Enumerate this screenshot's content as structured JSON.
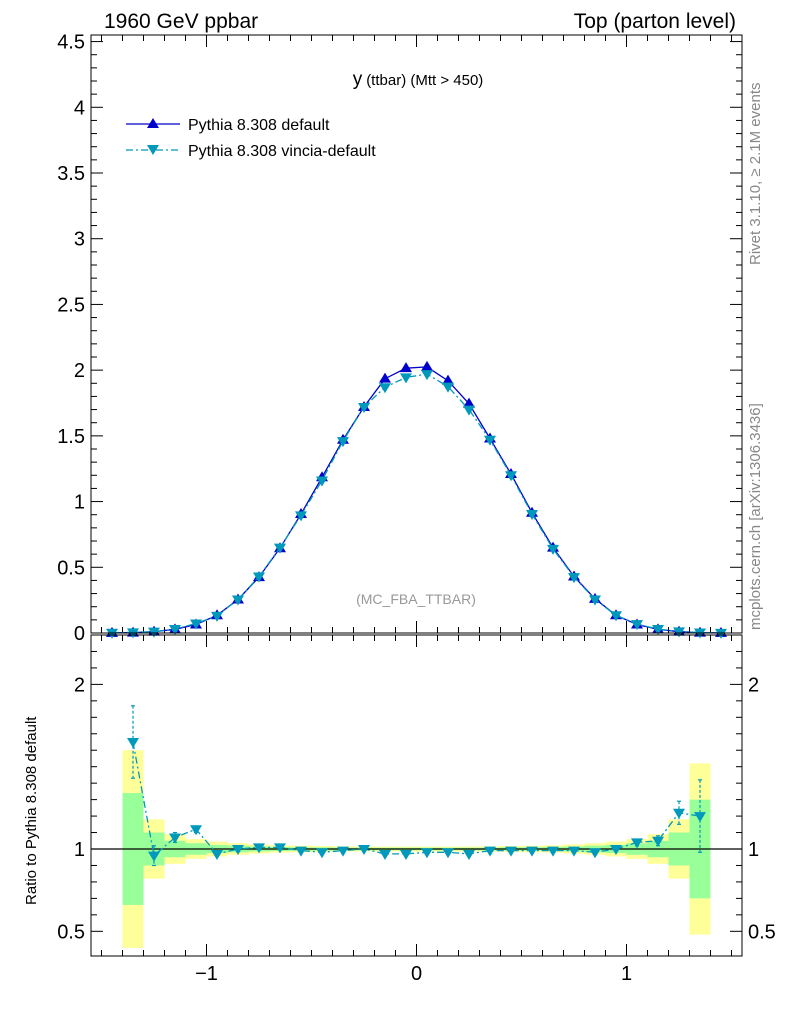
{
  "header": {
    "left": "1960 GeV ppbar",
    "right": "Top (parton level)"
  },
  "side": {
    "rivet": "Rivet 3.1.10, ≥ 2.1M events",
    "site": "mcplots.cern.ch [arXiv:1306.3436]"
  },
  "chart_data": [
    {
      "type": "line",
      "title": "y (ttbar) (Mtt > 450)",
      "title_main": "y",
      "title_sub": "(ttbar) (Mtt > 450)",
      "watermark": "(MC_FBA_TTBAR)",
      "xlim": [
        -1.55,
        1.55
      ],
      "ylim": [
        0,
        4.55
      ],
      "x_ticks": [
        -1,
        0,
        1
      ],
      "y_ticks": [
        0,
        0.5,
        1,
        1.5,
        2,
        2.5,
        3,
        3.5,
        4,
        4.5
      ],
      "y_tick_labels": [
        "0",
        "0.5",
        "1",
        "1.5",
        "2",
        "2.5",
        "3",
        "3.5",
        "4",
        "4.5"
      ],
      "legend_position": "top-left",
      "x": [
        -1.45,
        -1.35,
        -1.25,
        -1.15,
        -1.05,
        -0.95,
        -0.85,
        -0.75,
        -0.65,
        -0.55,
        -0.45,
        -0.35,
        -0.25,
        -0.15,
        -0.05,
        0.05,
        0.15,
        0.25,
        0.35,
        0.45,
        0.55,
        0.65,
        0.75,
        0.85,
        0.95,
        1.05,
        1.15,
        1.25,
        1.35,
        1.45
      ],
      "series": [
        {
          "name": "Pythia 8.308 default",
          "color": "#0000cc",
          "marker": "triangle-up",
          "line": "solid",
          "values": [
            0.001,
            0.003,
            0.01,
            0.028,
            0.065,
            0.135,
            0.255,
            0.425,
            0.645,
            0.905,
            1.185,
            1.47,
            1.72,
            1.935,
            2.015,
            2.025,
            1.92,
            1.745,
            1.48,
            1.21,
            0.915,
            0.65,
            0.43,
            0.26,
            0.135,
            0.065,
            0.028,
            0.01,
            0.003,
            0.001
          ]
        },
        {
          "name": "Pythia 8.308 vincia-default",
          "color": "#0099bb",
          "marker": "triangle-down",
          "line": "dashdot",
          "values": [
            0.002,
            0.005,
            0.01,
            0.03,
            0.072,
            0.13,
            0.255,
            0.43,
            0.65,
            0.895,
            1.16,
            1.46,
            1.72,
            1.87,
            1.945,
            1.97,
            1.875,
            1.7,
            1.47,
            1.2,
            0.905,
            0.64,
            0.425,
            0.255,
            0.135,
            0.068,
            0.03,
            0.012,
            0.004,
            0.001
          ]
        }
      ]
    },
    {
      "type": "line",
      "ylabel": "Ratio to Pythia 8.308 default",
      "xlim": [
        -1.55,
        1.55
      ],
      "ylim": [
        0.35,
        2.3
      ],
      "x_ticks": [
        -1,
        0,
        1
      ],
      "x_tick_labels": [
        "−1",
        "0",
        "1"
      ],
      "y_ticks": [
        0.5,
        1,
        2
      ],
      "y_tick_labels": [
        "0.5",
        "1",
        "2"
      ],
      "x": [
        -1.35,
        -1.25,
        -1.15,
        -1.05,
        -0.95,
        -0.85,
        -0.75,
        -0.65,
        -0.55,
        -0.45,
        -0.35,
        -0.25,
        -0.15,
        -0.05,
        0.05,
        0.15,
        0.25,
        0.35,
        0.45,
        0.55,
        0.65,
        0.75,
        0.85,
        0.95,
        1.05,
        1.15,
        1.25,
        1.35
      ],
      "bands": {
        "edges": [
          -1.4,
          -1.3,
          -1.2,
          -1.1,
          -1.0,
          -0.9,
          -0.8,
          -0.7,
          -0.6,
          -0.5,
          -0.4,
          -0.3,
          -0.2,
          -0.1,
          0.0,
          0.1,
          0.2,
          0.3,
          0.4,
          0.5,
          0.6,
          0.7,
          0.8,
          0.9,
          1.0,
          1.1,
          1.2,
          1.3,
          1.4
        ],
        "inner": [
          0.34,
          0.1,
          0.05,
          0.035,
          0.025,
          0.02,
          0.015,
          0.012,
          0.01,
          0.01,
          0.008,
          0.008,
          0.008,
          0.008,
          0.008,
          0.008,
          0.008,
          0.008,
          0.01,
          0.01,
          0.012,
          0.015,
          0.02,
          0.025,
          0.035,
          0.05,
          0.1,
          0.3
        ],
        "outer": [
          0.6,
          0.18,
          0.09,
          0.06,
          0.045,
          0.035,
          0.028,
          0.022,
          0.02,
          0.018,
          0.016,
          0.015,
          0.015,
          0.015,
          0.015,
          0.015,
          0.015,
          0.016,
          0.018,
          0.02,
          0.022,
          0.028,
          0.035,
          0.045,
          0.06,
          0.09,
          0.18,
          0.52
        ]
      },
      "series": [
        {
          "name": "Pythia 8.308 default",
          "color": "#000000",
          "values": [
            1,
            1,
            1,
            1,
            1,
            1,
            1,
            1,
            1,
            1,
            1,
            1,
            1,
            1,
            1,
            1,
            1,
            1,
            1,
            1,
            1,
            1,
            1,
            1,
            1,
            1,
            1,
            1
          ]
        },
        {
          "name": "Pythia 8.308 vincia-default",
          "color": "#0099bb",
          "values": [
            1.65,
            0.96,
            1.07,
            1.12,
            0.97,
            1.0,
            1.01,
            1.01,
            0.99,
            0.98,
            0.99,
            1.0,
            0.97,
            0.97,
            0.98,
            0.98,
            0.97,
            0.99,
            0.99,
            0.99,
            0.99,
            0.99,
            0.98,
            1.0,
            1.04,
            1.05,
            1.22,
            1.2
          ],
          "errors": [
            0.22,
            0.06,
            0.03,
            0.02,
            0.015,
            0.01,
            0.008,
            0.006,
            0.005,
            0.005,
            0.004,
            0.004,
            0.004,
            0.004,
            0.004,
            0.004,
            0.004,
            0.004,
            0.005,
            0.005,
            0.006,
            0.008,
            0.01,
            0.015,
            0.02,
            0.03,
            0.07,
            0.22
          ]
        }
      ]
    }
  ]
}
